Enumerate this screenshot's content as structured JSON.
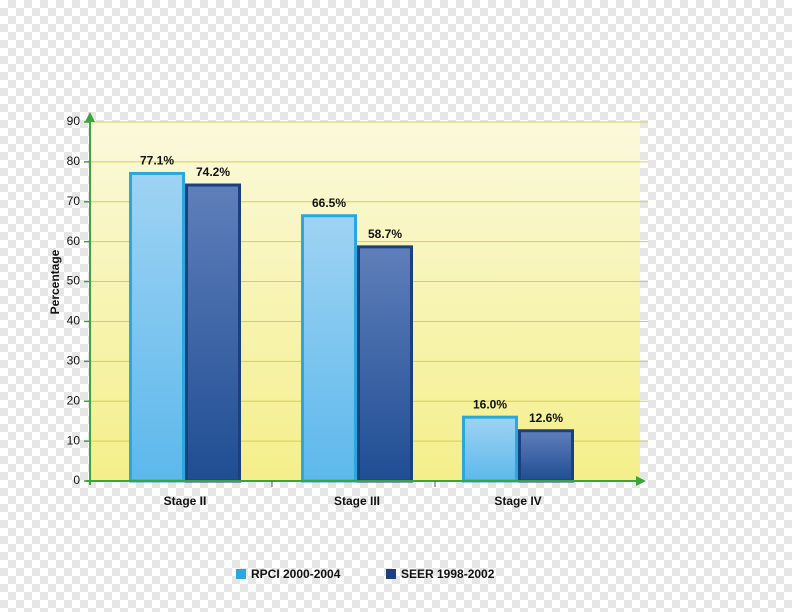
{
  "chart_data": {
    "type": "bar",
    "y_label": "Percentage",
    "categories": [
      "Stage II",
      "Stage III",
      "Stage IV"
    ],
    "series": [
      {
        "name": "RPCI 2000-2004",
        "color": "#29a8e0",
        "values": [
          77.1,
          66.5,
          16.0
        ],
        "value_labels": [
          "77.1%",
          "66.5%",
          "16.0%"
        ]
      },
      {
        "name": "SEER 1998-2002",
        "color": "#1c3f7f",
        "values": [
          74.2,
          58.7,
          12.6
        ],
        "value_labels": [
          "74.2%",
          "58.7%",
          "12.6%"
        ]
      }
    ],
    "ylim": [
      0,
      90
    ],
    "yticks": [
      0,
      10,
      20,
      30,
      40,
      50,
      60,
      70,
      80,
      90
    ],
    "grid": true
  }
}
